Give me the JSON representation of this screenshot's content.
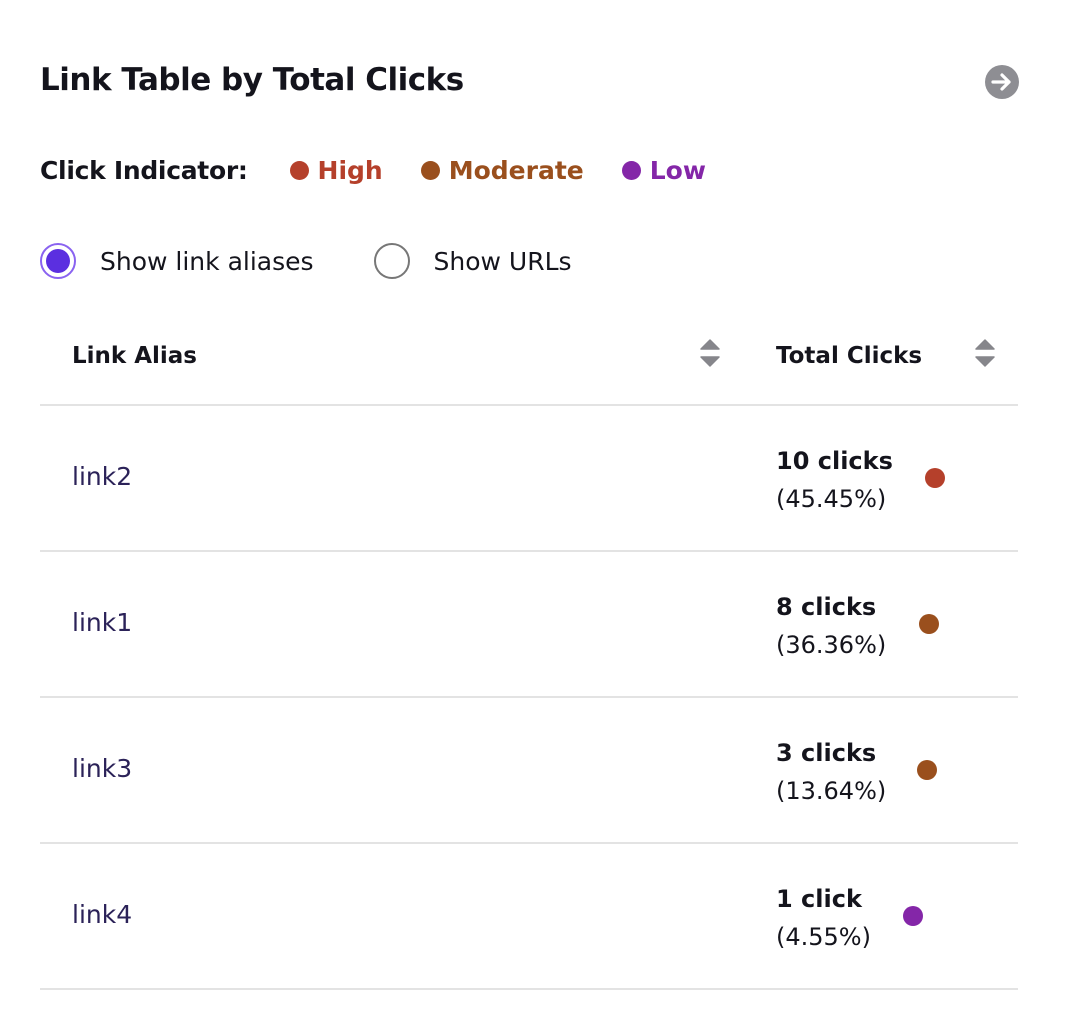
{
  "header": {
    "title": "Link Table by Total Clicks",
    "next_icon": "arrow-right-circle-icon"
  },
  "legend": {
    "label": "Click Indicator:",
    "items": [
      {
        "label": "High",
        "color": "#b5402b"
      },
      {
        "label": "Moderate",
        "color": "#9a4f1d"
      },
      {
        "label": "Low",
        "color": "#8426a8"
      }
    ]
  },
  "view_toggle": {
    "options": [
      {
        "label": "Show link aliases",
        "selected": true
      },
      {
        "label": "Show URLs",
        "selected": false
      }
    ]
  },
  "table": {
    "columns": [
      "Link Alias",
      "Total Clicks"
    ],
    "rows": [
      {
        "alias": "link2",
        "clicks": "10 clicks",
        "percent": "(45.45%)",
        "level": "High",
        "color": "#b5402b"
      },
      {
        "alias": "link1",
        "clicks": "8 clicks",
        "percent": "(36.36%)",
        "level": "Moderate",
        "color": "#9a4f1d"
      },
      {
        "alias": "link3",
        "clicks": "3 clicks",
        "percent": "(13.64%)",
        "level": "Moderate",
        "color": "#9a4f1d"
      },
      {
        "alias": "link4",
        "clicks": "1 click",
        "percent": "(4.55%)",
        "level": "Low",
        "color": "#8426a8"
      }
    ]
  }
}
